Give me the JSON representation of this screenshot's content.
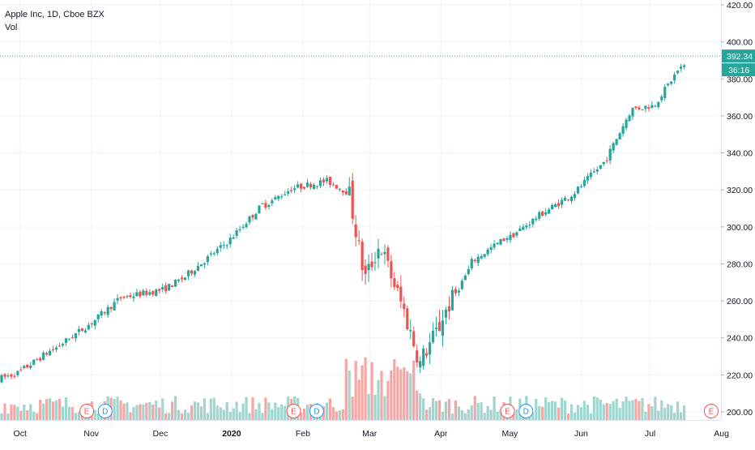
{
  "header": {
    "symbol_line": "Apple Inc, 1D, Cboe BZX",
    "volume_label": "Vol"
  },
  "price_tags": {
    "last_price": "392.34",
    "countdown": "36:16"
  },
  "colors": {
    "up": "#26a69a",
    "down": "#ef5350",
    "vol_up": "#9fd6cf",
    "vol_down": "#f5a7a5",
    "grid": "#f0f3fa",
    "axis_text": "#131722",
    "price_line": "#26a69a",
    "earnings": "#ef5350",
    "dividend": "#2196f3"
  },
  "chart_data": {
    "type": "candlestick",
    "title": "Apple Inc, 1D, Cboe BZX",
    "y_axis": {
      "ticks": [
        "420.00",
        "400.00",
        "380.00",
        "360.00",
        "340.00",
        "320.00",
        "300.00",
        "280.00",
        "260.00",
        "240.00",
        "220.00",
        "200.00"
      ],
      "ylim": [
        200,
        420
      ],
      "position": "right"
    },
    "x_axis": {
      "ticks": [
        "Oct",
        "Nov",
        "Dec",
        "2020",
        "Feb",
        "Mar",
        "Apr",
        "May",
        "Jun",
        "Jul",
        "Aug"
      ]
    },
    "grid": true,
    "series": [
      {
        "name": "Vol",
        "type": "volume"
      }
    ],
    "ohlc_anchors": [
      [
        "2019-09-23",
        217,
        219
      ],
      [
        "2019-10-01",
        220,
        225
      ],
      [
        "2019-10-15",
        232,
        236
      ],
      [
        "2019-10-31",
        246,
        248
      ],
      [
        "2019-11-15",
        262,
        265
      ],
      [
        "2019-12-02",
        266,
        263
      ],
      [
        "2019-12-13",
        274,
        276
      ],
      [
        "2019-12-31",
        292,
        293
      ],
      [
        "2020-01-15",
        312,
        315
      ],
      [
        "2020-01-28",
        322,
        316
      ],
      [
        "2020-02-12",
        326,
        327
      ],
      [
        "2020-02-21",
        320,
        311
      ],
      [
        "2020-02-28",
        272,
        274
      ],
      [
        "2020-03-06",
        292,
        290
      ],
      [
        "2020-03-16",
        258,
        242
      ],
      [
        "2020-03-23",
        230,
        226
      ],
      [
        "2020-04-01",
        250,
        241
      ],
      [
        "2020-04-14",
        279,
        287
      ],
      [
        "2020-04-30",
        293,
        294
      ],
      [
        "2020-05-15",
        307,
        308
      ],
      [
        "2020-05-29",
        318,
        318
      ],
      [
        "2020-06-12",
        336,
        338
      ],
      [
        "2020-06-23",
        363,
        366
      ],
      [
        "2020-07-02",
        365,
        365
      ],
      [
        "2020-07-13",
        385,
        382
      ],
      [
        "2020-07-17",
        386,
        392.34
      ]
    ],
    "events": [
      {
        "type": "earnings",
        "label": "E",
        "date": "2019-10-30"
      },
      {
        "type": "dividend",
        "label": "D",
        "date": "2019-11-07"
      },
      {
        "type": "earnings",
        "label": "E",
        "date": "2020-01-28"
      },
      {
        "type": "dividend",
        "label": "D",
        "date": "2020-02-07"
      },
      {
        "type": "earnings",
        "label": "E",
        "date": "2020-04-30"
      },
      {
        "type": "dividend",
        "label": "D",
        "date": "2020-05-08"
      },
      {
        "type": "earnings",
        "label": "E",
        "date": "2020-07-30"
      }
    ]
  }
}
